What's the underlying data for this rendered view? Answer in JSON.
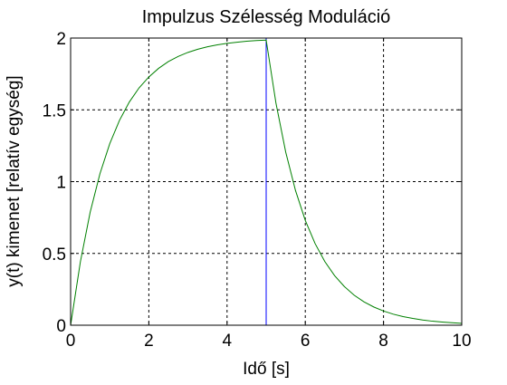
{
  "chart_data": {
    "type": "line",
    "title": "Impulzus Szélesség Moduláció",
    "xlabel": "Idő [s]",
    "ylabel": "y(t) kimenet [relatív egység]",
    "xlim": [
      0,
      10
    ],
    "ylim": [
      0,
      2
    ],
    "xticks": [
      0,
      2,
      4,
      6,
      8,
      10
    ],
    "xtick_labels": [
      "0",
      "2",
      "4",
      "6",
      "8",
      "10"
    ],
    "yticks": [
      0,
      0.5,
      1,
      1.5,
      2
    ],
    "ytick_labels": [
      "0",
      "0.5",
      "1",
      "1.5",
      "2"
    ],
    "grid": true,
    "series": [
      {
        "color": "#0000ff",
        "x": [
          0,
          5,
          5,
          10,
          10
        ],
        "y": [
          2,
          2,
          0,
          0,
          2
        ]
      },
      {
        "color": "#008000",
        "x": [
          0,
          0.25,
          0.5,
          0.75,
          1.0,
          1.25,
          1.5,
          1.75,
          2.0,
          2.25,
          2.5,
          2.75,
          3.0,
          3.25,
          3.5,
          3.75,
          4.0,
          4.25,
          4.5,
          4.75,
          5.0,
          5.25,
          5.5,
          5.75,
          6.0,
          6.25,
          6.5,
          6.75,
          7.0,
          7.25,
          7.5,
          7.75,
          8.0,
          8.25,
          8.5,
          8.75,
          9.0,
          9.25,
          9.5,
          9.75,
          10.0
        ],
        "y": [
          0,
          0.442,
          0.787,
          1.055,
          1.264,
          1.427,
          1.554,
          1.653,
          1.729,
          1.789,
          1.836,
          1.872,
          1.9,
          1.922,
          1.939,
          1.953,
          1.963,
          1.971,
          1.978,
          1.983,
          1.986,
          1.547,
          1.205,
          0.938,
          0.73,
          0.569,
          0.443,
          0.345,
          0.269,
          0.209,
          0.163,
          0.127,
          0.099,
          0.077,
          0.06,
          0.047,
          0.036,
          0.028,
          0.022,
          0.017,
          0.013
        ]
      }
    ]
  }
}
